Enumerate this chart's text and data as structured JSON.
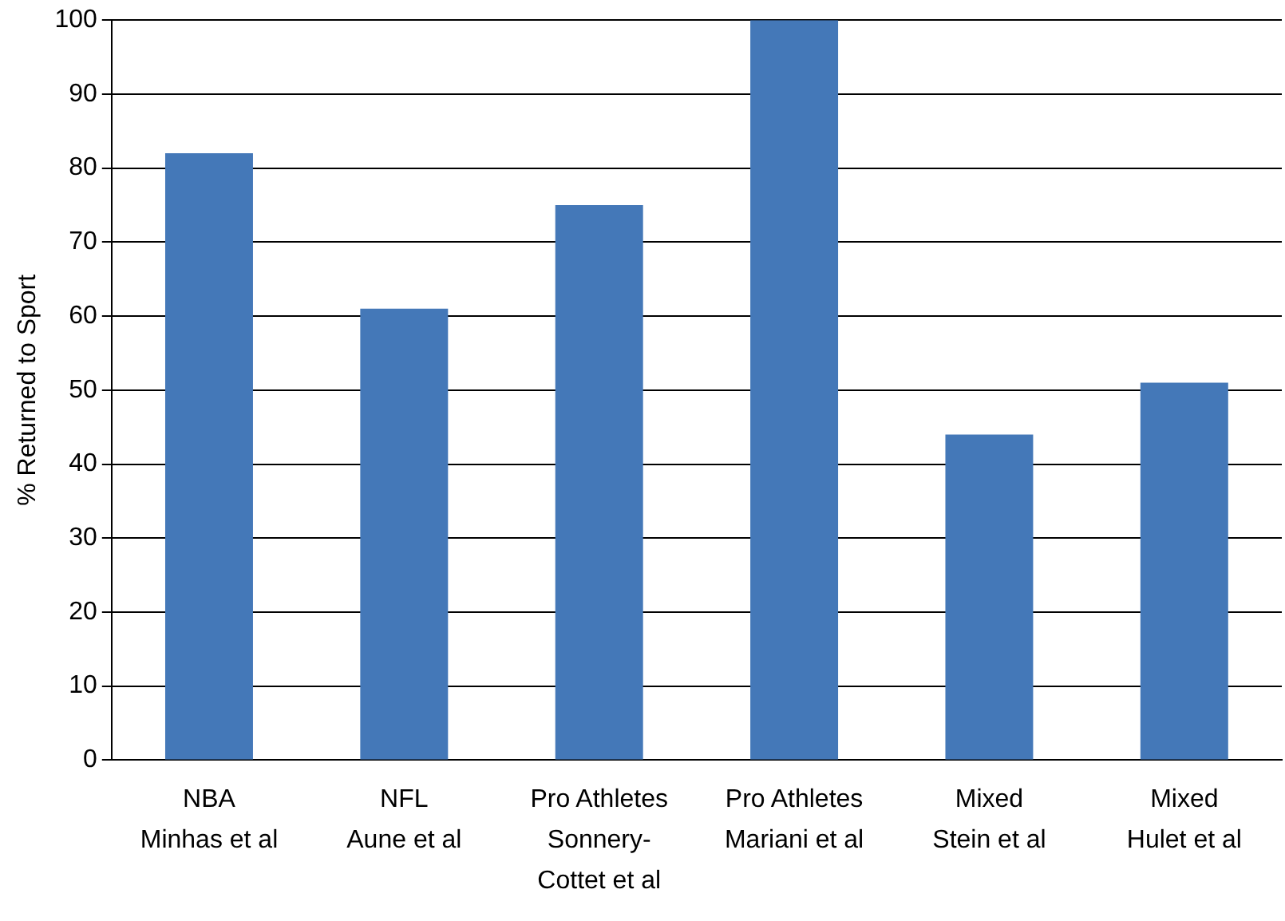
{
  "chart_data": {
    "type": "bar",
    "ylabel": "% Returned to Sport",
    "categories": [
      "NBA\nMinhas et al",
      "NFL\nAune et al",
      "Pro Athletes\nSonnery-\nCottet et al",
      "Pro Athletes\nMariani et al",
      "Mixed\nStein et al",
      "Mixed\nHulet et al"
    ],
    "values": [
      82,
      61,
      75,
      100,
      44,
      51
    ],
    "color": "#4478b8",
    "ylim": [
      0,
      100
    ],
    "yticks": [
      0,
      10,
      20,
      30,
      40,
      50,
      60,
      70,
      80,
      90,
      100
    ],
    "grid": "y",
    "legend": false
  }
}
